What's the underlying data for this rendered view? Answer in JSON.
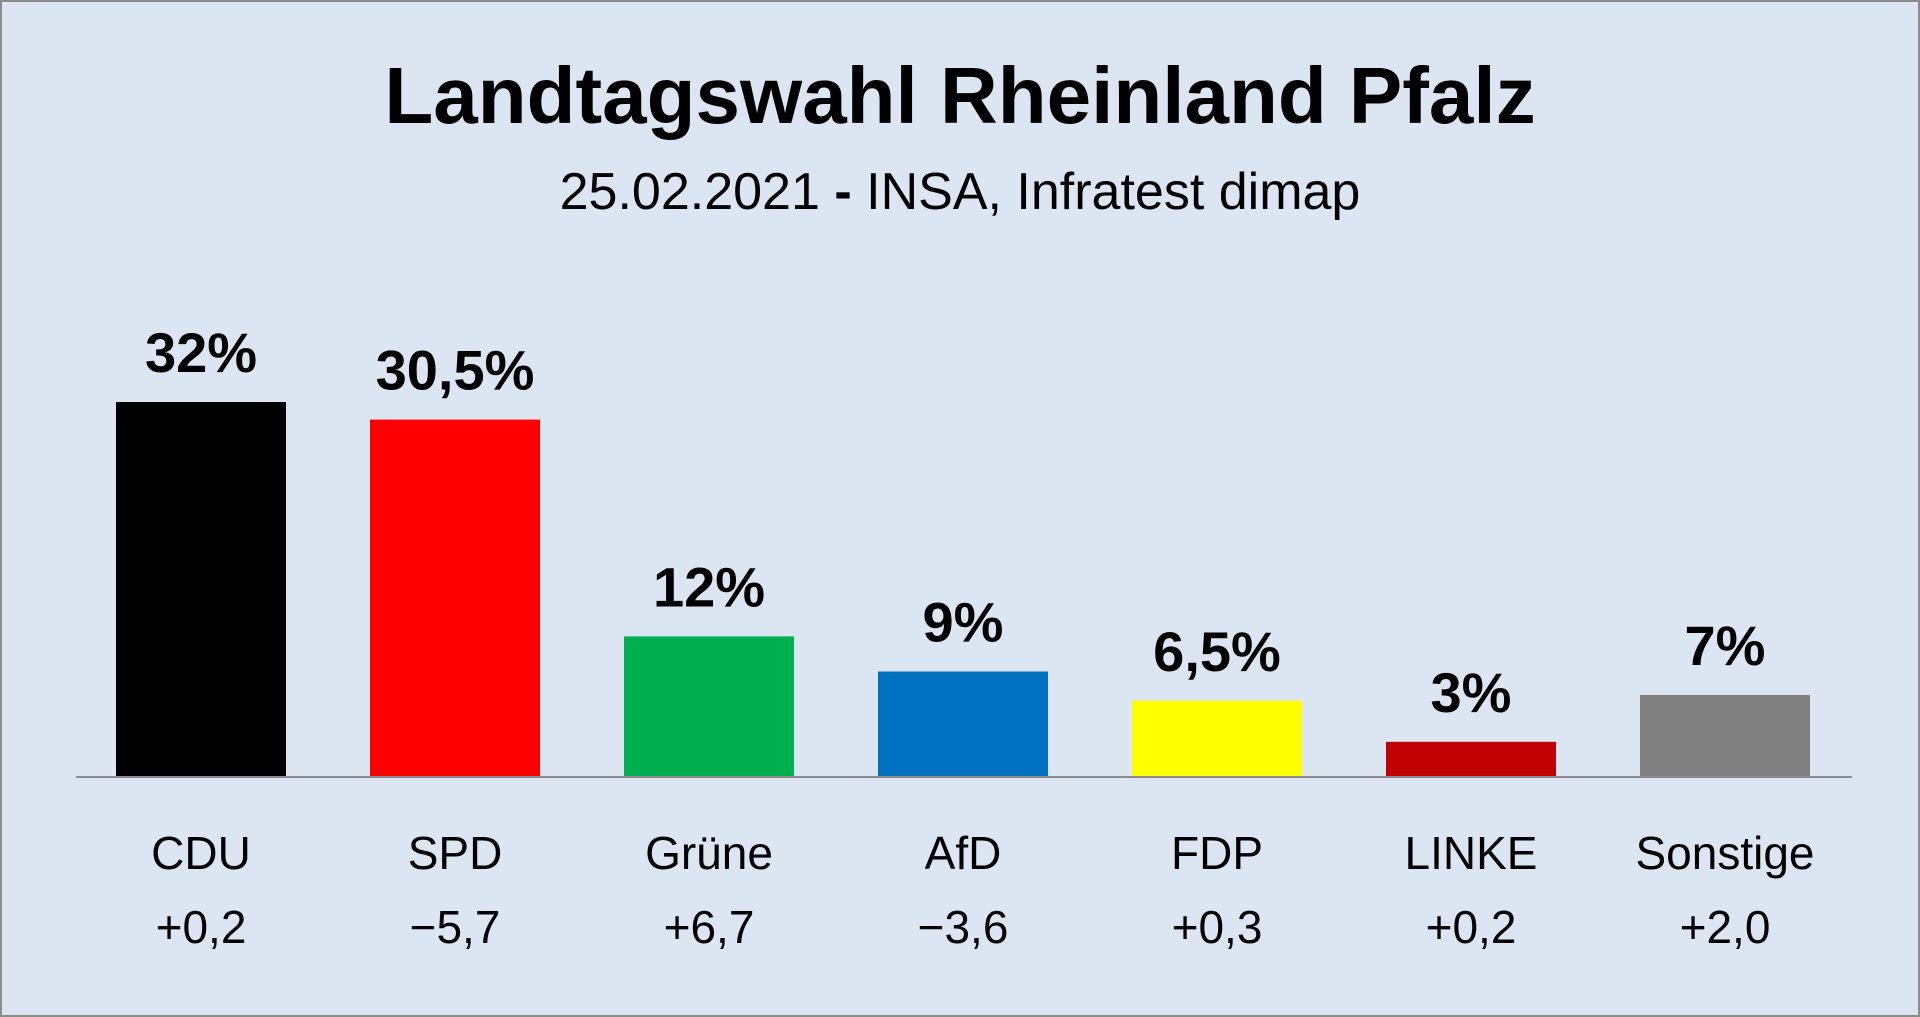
{
  "header": {
    "title": "Landtagswahl Rheinland Pfalz",
    "subtitle_date": "25.02.2021",
    "subtitle_dash": "-",
    "subtitle_source": "INSA, Infratest dimap"
  },
  "chart_data": {
    "type": "bar",
    "title": "Landtagswahl Rheinland Pfalz",
    "subtitle": "25.02.2021 - INSA, Infratest dimap",
    "categories": [
      "CDU",
      "SPD",
      "Grüne",
      "AfD",
      "FDP",
      "LINKE",
      "Sonstige"
    ],
    "values": [
      32,
      30.5,
      12,
      9,
      6.5,
      3,
      7
    ],
    "value_labels": [
      "32%",
      "30,5%",
      "12%",
      "9%",
      "6,5%",
      "3%",
      "7%"
    ],
    "changes": [
      "+0,2",
      "−5,7",
      "+6,7",
      "−3,6",
      "+0,3",
      "+0,2",
      "+2,0"
    ],
    "colors": [
      "#000000",
      "#ff0000",
      "#00b050",
      "#0070c0",
      "#ffff00",
      "#c00000",
      "#808080"
    ],
    "xlabel": "",
    "ylabel": "",
    "ylim": [
      0,
      32
    ],
    "grid": false,
    "unit": "%"
  }
}
